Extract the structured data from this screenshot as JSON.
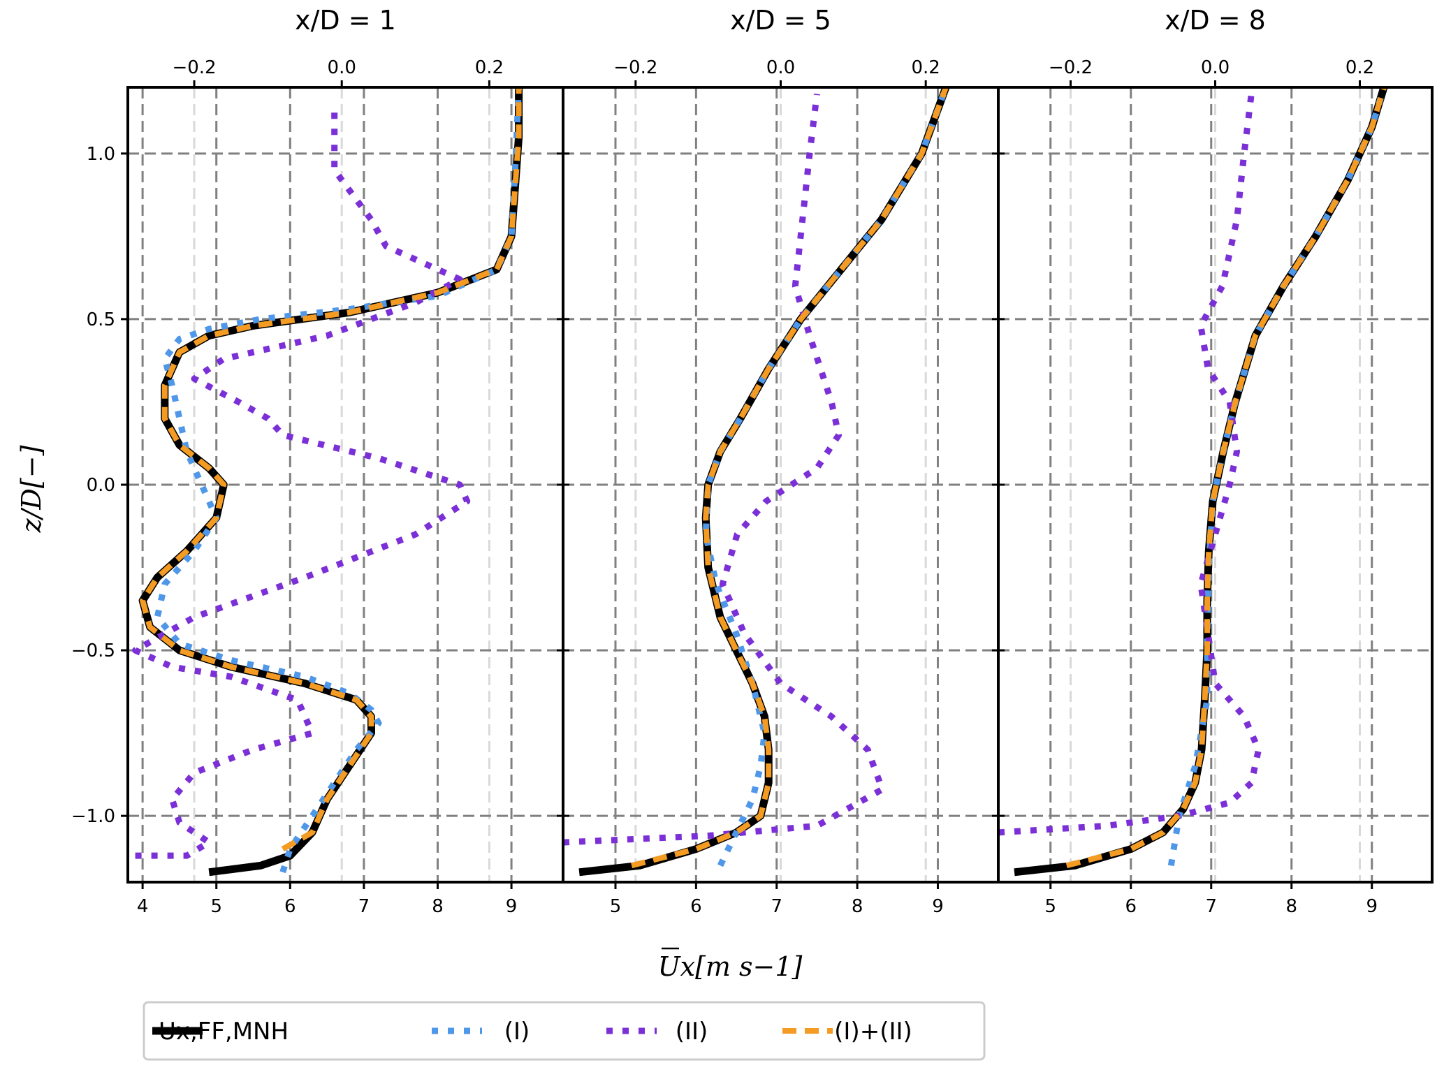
{
  "chart_data": {
    "type": "line",
    "ylabel": "z/D[−]",
    "xlabel": "Ux[m s−1]",
    "ylim": [
      -1.2,
      1.2
    ],
    "yticks": [
      -1.0,
      -0.5,
      0.0,
      0.5,
      1.0
    ],
    "ytick_labels": [
      "−1.0",
      "−0.5",
      "0.0",
      "0.5",
      "1.0"
    ],
    "grid": true,
    "legend": {
      "placement": "bottom-center",
      "entries": [
        {
          "label": "Ux,FF,MNH",
          "color": "#000000",
          "style": "solid"
        },
        {
          "label": "(I)",
          "color": "#4f97e8",
          "style": "dotted"
        },
        {
          "label": "(II)",
          "color": "#7b2fd6",
          "style": "dotted"
        },
        {
          "label": "(I)+(II)",
          "color": "#f39b22",
          "style": "dashed"
        }
      ]
    },
    "panels": [
      {
        "title": "x/D = 1",
        "xlim": [
          3.8,
          9.7
        ],
        "xticks": [
          4,
          5,
          6,
          7,
          8,
          9
        ],
        "xtick_labels": [
          "4",
          "5",
          "6",
          "7",
          "8",
          "9"
        ],
        "top_xlim": [
          -0.29,
          0.3
        ],
        "top_xticks": [
          -0.2,
          0.0,
          0.2
        ],
        "top_xtick_labels": [
          "−0.2",
          "0.0",
          "0.2"
        ],
        "series": [
          {
            "name": "Ux,FF,MNH",
            "axis": "bottom",
            "x": [
              4.9,
              5.6,
              6.0,
              6.3,
              6.5,
              6.8,
              7.1,
              7.1,
              6.9,
              6.2,
              5.2,
              4.5,
              4.1,
              4.0,
              4.2,
              4.6,
              5.0,
              5.1,
              4.9,
              4.5,
              4.3,
              4.3,
              4.5,
              4.9,
              5.5,
              6.8,
              8.0,
              8.8,
              9.0,
              9.05,
              9.1,
              9.1
            ],
            "y": [
              -1.17,
              -1.15,
              -1.12,
              -1.05,
              -0.95,
              -0.85,
              -0.75,
              -0.7,
              -0.65,
              -0.6,
              -0.55,
              -0.5,
              -0.43,
              -0.35,
              -0.28,
              -0.2,
              -0.1,
              0.0,
              0.05,
              0.12,
              0.2,
              0.3,
              0.4,
              0.45,
              0.48,
              0.52,
              0.58,
              0.65,
              0.75,
              0.9,
              1.05,
              1.2
            ]
          },
          {
            "name": "(I)",
            "axis": "bottom",
            "x": [
              5.9,
              6.0,
              6.3,
              6.6,
              6.9,
              7.2,
              7.1,
              6.8,
              6.2,
              5.2,
              4.5,
              4.2,
              4.3,
              4.7,
              5.0,
              4.8,
              4.6,
              4.5,
              4.4,
              4.3,
              4.5,
              4.9,
              5.6,
              6.8,
              8.0,
              8.8,
              9.0,
              9.05,
              9.1
            ],
            "y": [
              -1.17,
              -1.1,
              -1.0,
              -0.9,
              -0.8,
              -0.72,
              -0.68,
              -0.63,
              -0.58,
              -0.53,
              -0.48,
              -0.4,
              -0.3,
              -0.2,
              -0.1,
              0.0,
              0.1,
              0.2,
              0.3,
              0.38,
              0.44,
              0.47,
              0.5,
              0.53,
              0.57,
              0.65,
              0.75,
              0.95,
              1.2
            ]
          },
          {
            "name": "(II)",
            "axis": "top",
            "x": [
              -0.28,
              -0.21,
              -0.18,
              -0.22,
              -0.23,
              -0.2,
              -0.12,
              -0.04,
              -0.06,
              -0.15,
              -0.23,
              -0.28,
              -0.2,
              -0.05,
              0.1,
              0.17,
              0.16,
              0.05,
              -0.08,
              -0.1,
              -0.14,
              -0.2,
              -0.16,
              -0.02,
              0.1,
              0.16,
              0.06,
              0.04,
              -0.01,
              -0.01
            ],
            "y": [
              -1.12,
              -1.12,
              -1.08,
              -1.02,
              -0.95,
              -0.87,
              -0.8,
              -0.75,
              -0.65,
              -0.58,
              -0.55,
              -0.5,
              -0.4,
              -0.28,
              -0.15,
              -0.05,
              0.0,
              0.08,
              0.15,
              0.2,
              0.25,
              0.32,
              0.38,
              0.45,
              0.55,
              0.62,
              0.72,
              0.8,
              0.95,
              1.15
            ]
          },
          {
            "name": "(I)+(II)",
            "axis": "bottom",
            "x": [
              5.9,
              6.3,
              6.5,
              6.8,
              7.1,
              7.1,
              6.9,
              6.2,
              5.2,
              4.5,
              4.1,
              4.0,
              4.2,
              4.6,
              5.0,
              5.1,
              4.9,
              4.5,
              4.3,
              4.3,
              4.5,
              4.9,
              5.5,
              6.8,
              8.0,
              8.8,
              9.0,
              9.05,
              9.1,
              9.1
            ],
            "y": [
              -1.1,
              -1.05,
              -0.95,
              -0.85,
              -0.75,
              -0.7,
              -0.65,
              -0.6,
              -0.55,
              -0.5,
              -0.43,
              -0.35,
              -0.28,
              -0.2,
              -0.1,
              0.0,
              0.05,
              0.12,
              0.2,
              0.3,
              0.4,
              0.45,
              0.48,
              0.52,
              0.58,
              0.65,
              0.75,
              0.9,
              1.05,
              1.2
            ]
          }
        ]
      },
      {
        "title": "x/D = 5",
        "xlim": [
          4.35,
          9.75
        ],
        "xticks": [
          5,
          6,
          7,
          8,
          9
        ],
        "xtick_labels": [
          "5",
          "6",
          "7",
          "8",
          "9"
        ],
        "top_xlim": [
          -0.3,
          0.3
        ],
        "top_xticks": [
          -0.2,
          0.0,
          0.2
        ],
        "top_xtick_labels": [
          "−0.2",
          "0.0",
          "0.2"
        ],
        "series": [
          {
            "name": "Ux,FF,MNH",
            "axis": "bottom",
            "x": [
              4.55,
              5.3,
              6.0,
              6.5,
              6.8,
              6.9,
              6.9,
              6.85,
              6.7,
              6.5,
              6.3,
              6.15,
              6.12,
              6.15,
              6.3,
              6.55,
              6.9,
              7.3,
              7.8,
              8.3,
              8.8,
              9.1
            ],
            "y": [
              -1.17,
              -1.15,
              -1.1,
              -1.05,
              -1.0,
              -0.9,
              -0.8,
              -0.7,
              -0.6,
              -0.5,
              -0.4,
              -0.25,
              -0.1,
              0.0,
              0.1,
              0.2,
              0.35,
              0.5,
              0.65,
              0.8,
              1.0,
              1.2
            ]
          },
          {
            "name": "(I)",
            "axis": "bottom",
            "x": [
              6.3,
              6.5,
              6.7,
              6.8,
              6.85,
              6.7,
              6.5,
              6.25,
              6.12,
              6.15,
              6.3,
              6.55,
              6.9,
              7.3,
              7.8,
              8.3,
              8.8,
              9.1
            ],
            "y": [
              -1.15,
              -1.05,
              -0.95,
              -0.85,
              -0.75,
              -0.6,
              -0.45,
              -0.3,
              -0.15,
              0.0,
              0.1,
              0.2,
              0.35,
              0.5,
              0.65,
              0.8,
              1.0,
              1.2
            ]
          },
          {
            "name": "(II)",
            "axis": "top",
            "x": [
              -0.3,
              -0.1,
              0.05,
              0.14,
              0.12,
              0.07,
              0.0,
              -0.05,
              -0.08,
              -0.06,
              -0.02,
              0.05,
              0.08,
              0.07,
              0.04,
              0.02,
              0.03,
              0.04,
              0.05
            ],
            "y": [
              -1.08,
              -1.06,
              -1.03,
              -0.92,
              -0.8,
              -0.7,
              -0.6,
              -0.45,
              -0.3,
              -0.15,
              -0.05,
              0.05,
              0.15,
              0.25,
              0.45,
              0.6,
              0.8,
              1.0,
              1.18
            ]
          },
          {
            "name": "(I)+(II)",
            "axis": "bottom",
            "x": [
              5.2,
              6.0,
              6.5,
              6.8,
              6.9,
              6.9,
              6.85,
              6.7,
              6.5,
              6.3,
              6.15,
              6.12,
              6.15,
              6.3,
              6.55,
              6.9,
              7.3,
              7.8,
              8.3,
              8.8,
              9.1
            ],
            "y": [
              -1.15,
              -1.1,
              -1.05,
              -1.0,
              -0.9,
              -0.8,
              -0.7,
              -0.6,
              -0.5,
              -0.4,
              -0.25,
              -0.1,
              0.0,
              0.1,
              0.2,
              0.35,
              0.5,
              0.65,
              0.8,
              1.0,
              1.2
            ]
          }
        ]
      },
      {
        "title": "x/D = 8",
        "xlim": [
          4.35,
          9.75
        ],
        "xticks": [
          5,
          6,
          7,
          8,
          9
        ],
        "xtick_labels": [
          "5",
          "6",
          "7",
          "8",
          "9"
        ],
        "top_xlim": [
          -0.3,
          0.3
        ],
        "top_xticks": [
          -0.2,
          0.0,
          0.2
        ],
        "top_xtick_labels": [
          "−0.2",
          "0.0",
          "0.2"
        ],
        "series": [
          {
            "name": "Ux,FF,MNH",
            "axis": "bottom",
            "x": [
              4.55,
              5.3,
              6.0,
              6.4,
              6.65,
              6.8,
              6.88,
              6.92,
              6.95,
              6.95,
              6.97,
              7.02,
              7.15,
              7.3,
              7.55,
              7.9,
              8.3,
              8.7,
              9.0,
              9.15
            ],
            "y": [
              -1.17,
              -1.15,
              -1.1,
              -1.05,
              -0.98,
              -0.9,
              -0.8,
              -0.65,
              -0.5,
              -0.35,
              -0.2,
              -0.05,
              0.1,
              0.25,
              0.45,
              0.6,
              0.75,
              0.92,
              1.08,
              1.2
            ]
          },
          {
            "name": "(I)",
            "axis": "bottom",
            "x": [
              6.5,
              6.6,
              6.8,
              6.95,
              6.95,
              6.97,
              7.02,
              7.15,
              7.3,
              7.55,
              7.9,
              8.3,
              8.7,
              9.0,
              9.15
            ],
            "y": [
              -1.15,
              -1.0,
              -0.85,
              -0.65,
              -0.45,
              -0.25,
              -0.05,
              0.1,
              0.25,
              0.45,
              0.6,
              0.75,
              0.92,
              1.08,
              1.2
            ]
          },
          {
            "name": "(II)",
            "axis": "top",
            "x": [
              -0.3,
              -0.15,
              -0.05,
              0.02,
              0.05,
              0.06,
              0.04,
              0.0,
              -0.01,
              -0.02,
              0.0,
              0.02,
              0.03,
              0.02,
              -0.01,
              -0.02,
              0.01,
              0.02,
              0.03,
              0.04,
              0.05
            ],
            "y": [
              -1.05,
              -1.03,
              -1.0,
              -0.96,
              -0.9,
              -0.8,
              -0.7,
              -0.6,
              -0.45,
              -0.3,
              -0.15,
              0.0,
              0.1,
              0.25,
              0.35,
              0.48,
              0.6,
              0.7,
              0.8,
              1.0,
              1.18
            ]
          },
          {
            "name": "(I)+(II)",
            "axis": "bottom",
            "x": [
              5.2,
              6.0,
              6.4,
              6.65,
              6.8,
              6.88,
              6.92,
              6.95,
              6.95,
              6.97,
              7.02,
              7.15,
              7.3,
              7.55,
              7.9,
              8.3,
              8.7,
              9.0,
              9.15
            ],
            "y": [
              -1.15,
              -1.1,
              -1.05,
              -0.98,
              -0.9,
              -0.8,
              -0.65,
              -0.5,
              -0.35,
              -0.2,
              -0.05,
              0.1,
              0.25,
              0.45,
              0.6,
              0.75,
              0.92,
              1.08,
              1.2
            ]
          }
        ]
      }
    ]
  }
}
